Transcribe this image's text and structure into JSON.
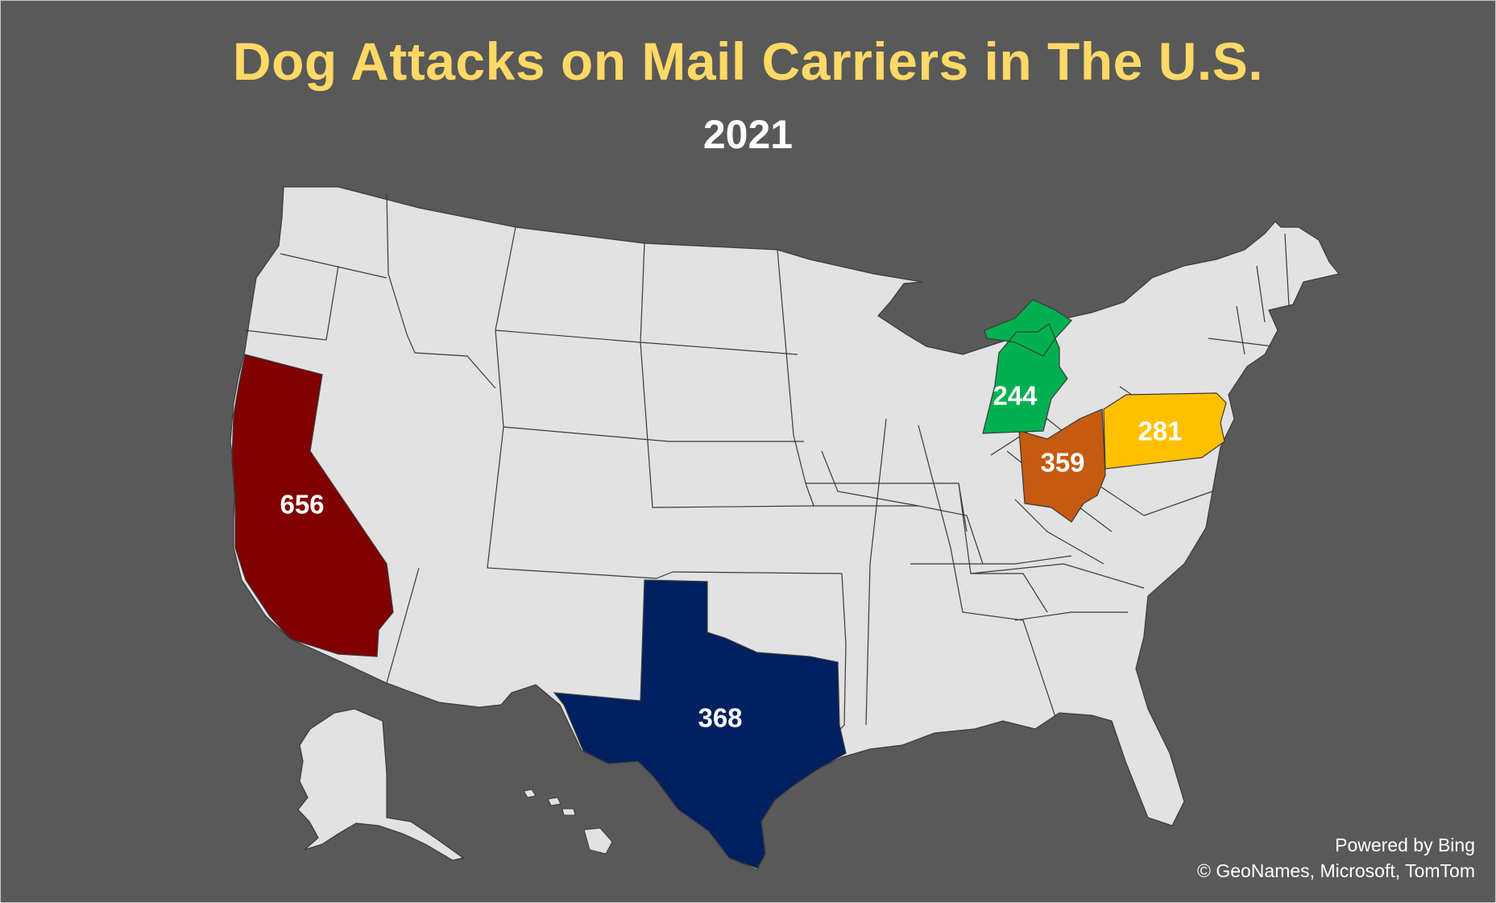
{
  "title": "Dog Attacks on Mail Carriers in The U.S.",
  "subtitle": "2021",
  "colors": {
    "background": "#595959",
    "land": "#e2e2e2",
    "border": "#3a3a3a",
    "title": "#ffd966"
  },
  "states": [
    {
      "name": "California",
      "value": "656",
      "color": "#800000"
    },
    {
      "name": "Texas",
      "value": "368",
      "color": "#002060"
    },
    {
      "name": "Ohio",
      "value": "359",
      "color": "#c55a11"
    },
    {
      "name": "Pennsylvania",
      "value": "281",
      "color": "#ffc000"
    },
    {
      "name": "Michigan",
      "value": "244",
      "color": "#00b050"
    }
  ],
  "credits": {
    "line1": "Powered by Bing",
    "line2": "© GeoNames, Microsoft, TomTom"
  }
}
